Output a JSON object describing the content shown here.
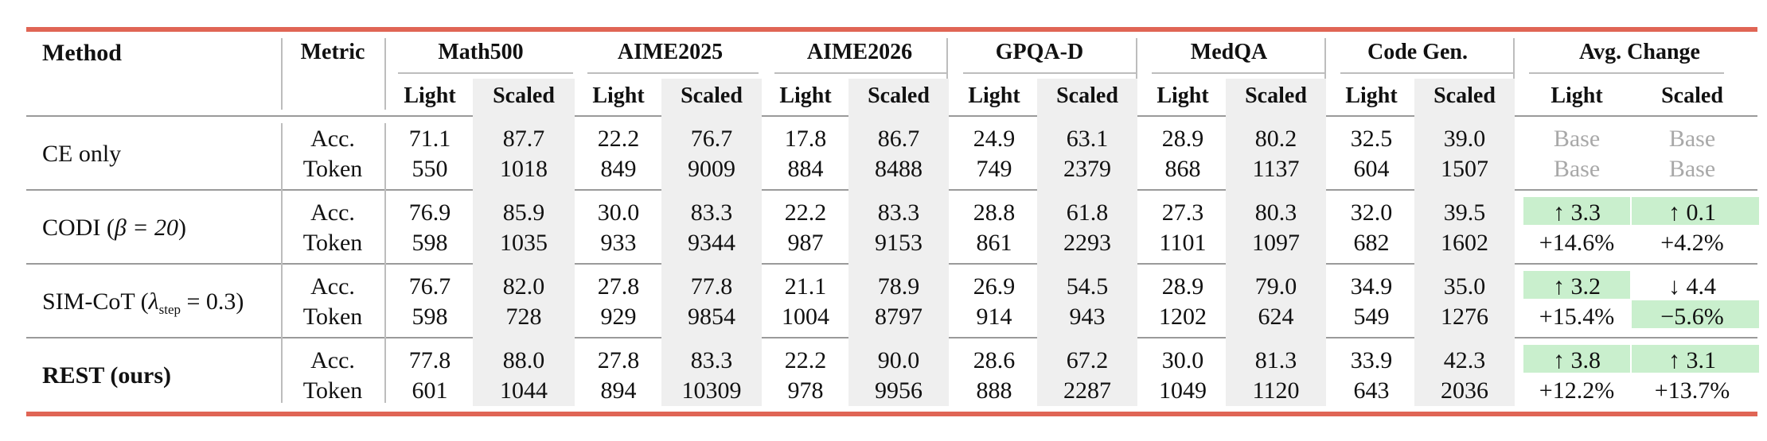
{
  "header": {
    "method": "Method",
    "metric": "Metric",
    "benchmarks": [
      "Math500",
      "AIME2025",
      "AIME2026",
      "GPQA-D",
      "MedQA",
      "Code Gen.",
      "Avg. Change"
    ],
    "light": "Light",
    "scaled": "Scaled"
  },
  "rows": [
    {
      "method": "CE only",
      "metrics": [
        "Acc.",
        "Token"
      ],
      "acc": [
        "71.1",
        "87.7",
        "22.2",
        "76.7",
        "17.8",
        "86.7",
        "24.9",
        "63.1",
        "28.9",
        "80.2",
        "32.5",
        "39.0"
      ],
      "token": [
        "550",
        "1018",
        "849",
        "9009",
        "884",
        "8488",
        "749",
        "2379",
        "868",
        "1137",
        "604",
        "1507"
      ],
      "avg_acc": [
        "Base",
        "Base"
      ],
      "avg_token": [
        "Base",
        "Base"
      ]
    },
    {
      "method_pre": "CODI (",
      "method_sym": "β = 20",
      "method_post": ")",
      "metrics": [
        "Acc.",
        "Token"
      ],
      "acc": [
        "76.9",
        "85.9",
        "30.0",
        "83.3",
        "22.2",
        "83.3",
        "28.8",
        "61.8",
        "27.3",
        "80.3",
        "32.0",
        "39.5"
      ],
      "token": [
        "598",
        "1035",
        "933",
        "9344",
        "987",
        "9153",
        "861",
        "2293",
        "1101",
        "1097",
        "682",
        "1602"
      ],
      "avg_acc": [
        "↑ 3.3",
        "↑ 0.1"
      ],
      "avg_token": [
        "+14.6%",
        "+4.2%"
      ]
    },
    {
      "method_pre": "SIM-CoT (",
      "method_sym": "λ",
      "method_sub": "step",
      "method_eq": " = 0.3)",
      "metrics": [
        "Acc.",
        "Token"
      ],
      "acc": [
        "76.7",
        "82.0",
        "27.8",
        "77.8",
        "21.1",
        "78.9",
        "26.9",
        "54.5",
        "28.9",
        "79.0",
        "34.9",
        "35.0"
      ],
      "token": [
        "598",
        "728",
        "929",
        "9854",
        "1004",
        "8797",
        "914",
        "943",
        "1202",
        "624",
        "549",
        "1276"
      ],
      "avg_acc": [
        "↑ 3.2",
        "↓ 4.4"
      ],
      "avg_token": [
        "+15.4%",
        "−5.6%"
      ]
    },
    {
      "method": "REST (ours)",
      "metrics": [
        "Acc.",
        "Token"
      ],
      "acc": [
        "77.8",
        "88.0",
        "27.8",
        "83.3",
        "22.2",
        "90.0",
        "28.6",
        "67.2",
        "30.0",
        "81.3",
        "33.9",
        "42.3"
      ],
      "token": [
        "601",
        "1044",
        "894",
        "10309",
        "978",
        "9956",
        "888",
        "2287",
        "1049",
        "1120",
        "643",
        "2036"
      ],
      "avg_acc": [
        "↑ 3.8",
        "↑ 3.1"
      ],
      "avg_token": [
        "+12.2%",
        "+13.7%"
      ]
    }
  ],
  "colors": {
    "rule": "#e06555",
    "shade": "#efefef",
    "green": "#c9efcd",
    "base_text": "#a8a8a8"
  }
}
